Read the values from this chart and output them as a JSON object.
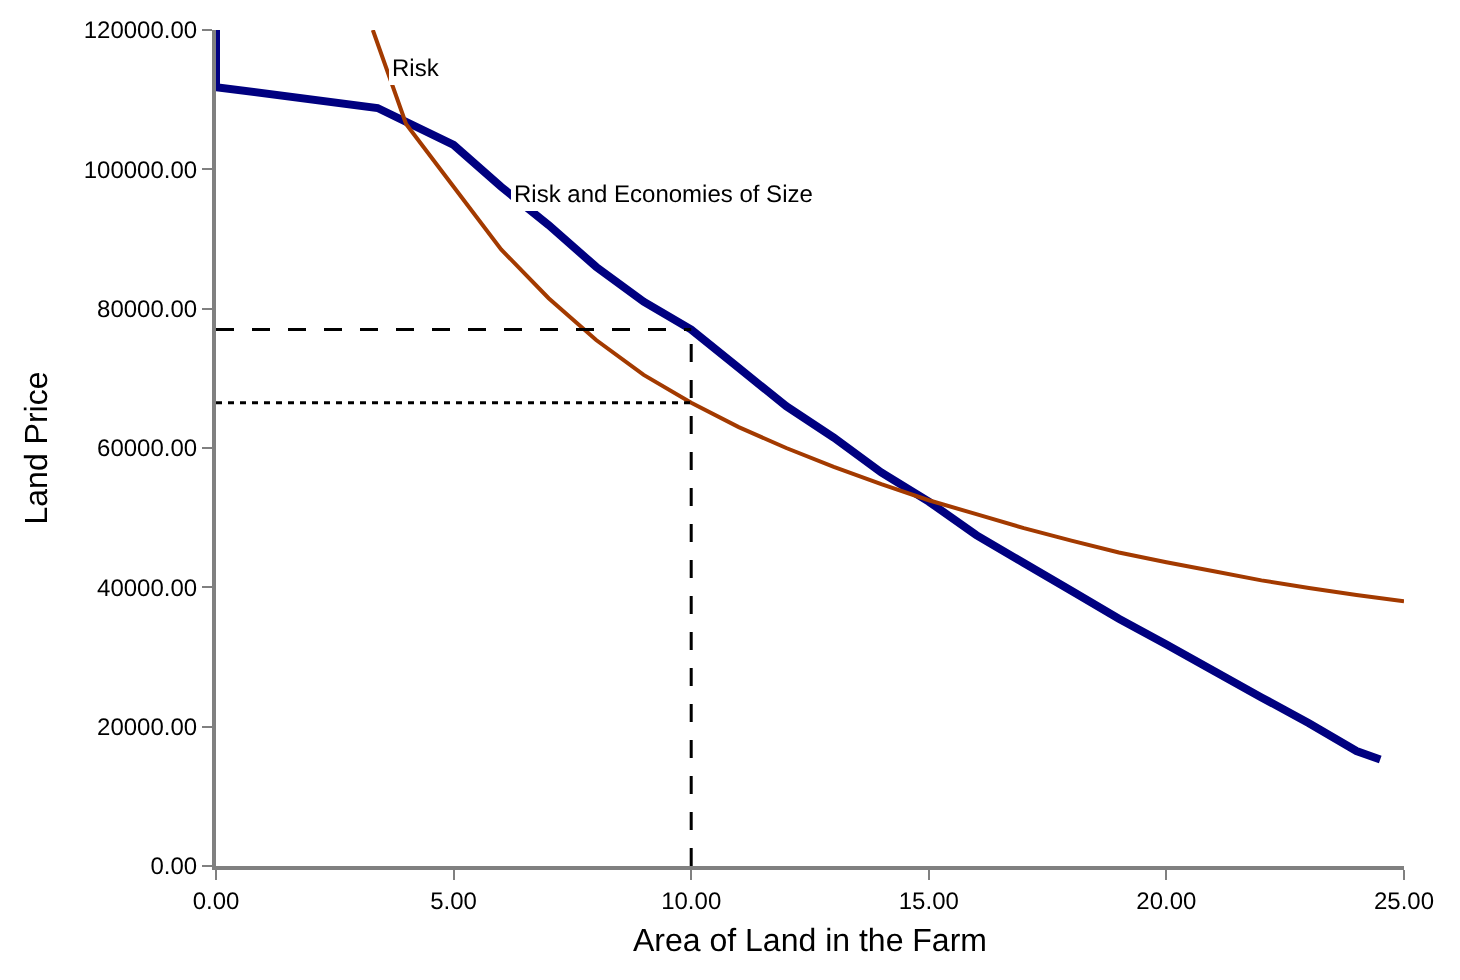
{
  "chart_data": {
    "type": "line",
    "xlabel": "Area of Land in the Farm",
    "ylabel": "Land Price",
    "xlim": [
      0,
      25
    ],
    "ylim": [
      0,
      120000
    ],
    "xticks": [
      {
        "value": 0,
        "label": "0.00"
      },
      {
        "value": 5,
        "label": "5.00"
      },
      {
        "value": 10,
        "label": "10.00"
      },
      {
        "value": 15,
        "label": "15.00"
      },
      {
        "value": 20,
        "label": "20.00"
      },
      {
        "value": 25,
        "label": "25.00"
      }
    ],
    "yticks": [
      {
        "value": 0,
        "label": "0.00"
      },
      {
        "value": 20000,
        "label": "20000.00"
      },
      {
        "value": 40000,
        "label": "40000.00"
      },
      {
        "value": 60000,
        "label": "60000.00"
      },
      {
        "value": 80000,
        "label": "80000.00"
      },
      {
        "value": 100000,
        "label": "100000.00"
      },
      {
        "value": 120000,
        "label": "120000.00"
      }
    ],
    "grid": false,
    "marker": "none",
    "line_style": "solid",
    "series": [
      {
        "color": "#000080",
        "x": [
          0,
          0,
          3.4,
          5,
          6,
          7,
          8,
          9,
          10,
          11,
          12,
          13,
          14,
          15,
          16,
          17,
          18,
          19,
          20,
          21,
          22,
          23,
          24,
          24.5
        ],
        "values": [
          120000,
          111800,
          108800,
          103500,
          97500,
          92000,
          86000,
          81000,
          77000,
          71500,
          66000,
          61500,
          56500,
          52300,
          47500,
          43500,
          39500,
          35500,
          31800,
          28000,
          24200,
          20500,
          16500,
          15300
        ]
      },
      {
        "color": "#a33a00",
        "x": [
          3.3,
          4,
          5,
          6,
          7,
          8,
          9,
          10,
          11,
          12,
          13,
          14,
          15,
          16,
          17,
          18,
          19,
          20,
          21,
          22,
          23,
          24,
          25
        ],
        "values": [
          120000,
          106500,
          97500,
          88500,
          81500,
          75500,
          70500,
          66500,
          63000,
          60000,
          57300,
          54800,
          52500,
          50500,
          48500,
          46700,
          45000,
          43600,
          42300,
          41000,
          39900,
          38900,
          38000
        ]
      }
    ],
    "ref_lines": [
      {
        "axis": "y",
        "value": 77000,
        "line_style": "dashed",
        "color": "#000000"
      },
      {
        "axis": "y",
        "value": 66500,
        "line_style": "dotted",
        "color": "#000000"
      },
      {
        "axis": "x",
        "value": 10,
        "line_style": "dashed",
        "color": "#000000"
      }
    ],
    "annotations": [
      {
        "text": "Risk",
        "x": 3.6,
        "y": 114500
      },
      {
        "text": "Risk and Economies of Size",
        "x": 6.2,
        "y": 96500
      }
    ]
  }
}
